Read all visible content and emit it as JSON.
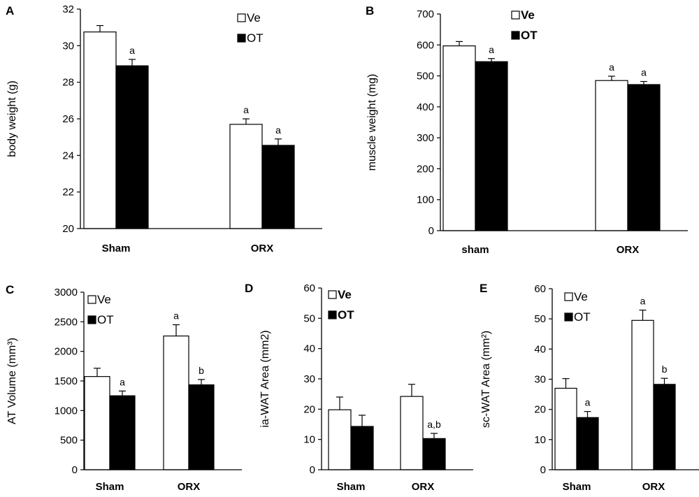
{
  "chart_data": [
    {
      "panel": "A",
      "type": "bar",
      "categories": [
        "Sham",
        "ORX"
      ],
      "series": [
        {
          "name": "Ve",
          "color": "#ffffff",
          "values": [
            30.75,
            25.7
          ],
          "errors": [
            0.35,
            0.3
          ],
          "labels": [
            "",
            "a"
          ]
        },
        {
          "name": "OT",
          "color": "#000000",
          "values": [
            28.9,
            24.55
          ],
          "errors": [
            0.35,
            0.35
          ],
          "labels": [
            "a",
            "a"
          ]
        }
      ],
      "ylabel": "body weight (g)",
      "ylim": [
        20,
        32
      ],
      "yticks": [
        20,
        22,
        24,
        26,
        28,
        30,
        32
      ],
      "legend_bold": false
    },
    {
      "panel": "B",
      "type": "bar",
      "categories": [
        "sham",
        "ORX"
      ],
      "series": [
        {
          "name": "Ve",
          "color": "#ffffff",
          "values": [
            597,
            485
          ],
          "errors": [
            14,
            14
          ],
          "labels": [
            "",
            "a"
          ]
        },
        {
          "name": "OT",
          "color": "#000000",
          "values": [
            546,
            472
          ],
          "errors": [
            10,
            10
          ],
          "labels": [
            "a",
            "a"
          ]
        }
      ],
      "ylabel": "muscle weight (mg)",
      "ylim": [
        0,
        700
      ],
      "yticks": [
        0,
        100,
        200,
        300,
        400,
        500,
        600,
        700
      ],
      "legend_bold": true
    },
    {
      "panel": "C",
      "type": "bar",
      "categories": [
        "Sham",
        "ORX"
      ],
      "series": [
        {
          "name": "Ve",
          "color": "#ffffff",
          "values": [
            1575,
            2260
          ],
          "errors": [
            140,
            190
          ],
          "labels": [
            "",
            "a"
          ]
        },
        {
          "name": "OT",
          "color": "#000000",
          "values": [
            1250,
            1435
          ],
          "errors": [
            80,
            90
          ],
          "labels": [
            "a",
            "b"
          ]
        }
      ],
      "ylabel": "AT Volume (mm³)",
      "ylim": [
        0,
        3000
      ],
      "yticks": [
        0,
        500,
        1000,
        1500,
        2000,
        2500,
        3000
      ],
      "legend_bold": false
    },
    {
      "panel": "D",
      "type": "bar",
      "categories": [
        "Sham",
        "ORX"
      ],
      "series": [
        {
          "name": "Ve",
          "color": "#ffffff",
          "values": [
            19.8,
            24.2
          ],
          "errors": [
            4.2,
            4.0
          ],
          "labels": [
            "",
            ""
          ]
        },
        {
          "name": "OT",
          "color": "#000000",
          "values": [
            14.3,
            10.3
          ],
          "errors": [
            3.7,
            1.7
          ],
          "labels": [
            "",
            "a,b"
          ]
        }
      ],
      "ylabel": "ia-WAT Area (mm2)",
      "ylim": [
        0,
        60
      ],
      "yticks": [
        0,
        10,
        20,
        30,
        40,
        50,
        60
      ],
      "legend_bold": true
    },
    {
      "panel": "E",
      "type": "bar",
      "categories": [
        "Sham",
        "ORX"
      ],
      "series": [
        {
          "name": "Ve",
          "color": "#ffffff",
          "values": [
            27.0,
            49.5
          ],
          "errors": [
            3.2,
            3.4
          ],
          "labels": [
            "",
            "a"
          ]
        },
        {
          "name": "OT",
          "color": "#000000",
          "values": [
            17.3,
            28.3
          ],
          "errors": [
            2.0,
            2.0
          ],
          "labels": [
            "a",
            "b"
          ]
        }
      ],
      "ylabel": "sc-WAT Area (mm²)",
      "ylim": [
        0,
        60
      ],
      "yticks": [
        0,
        10,
        20,
        30,
        40,
        50,
        60
      ],
      "legend_bold": false
    }
  ]
}
